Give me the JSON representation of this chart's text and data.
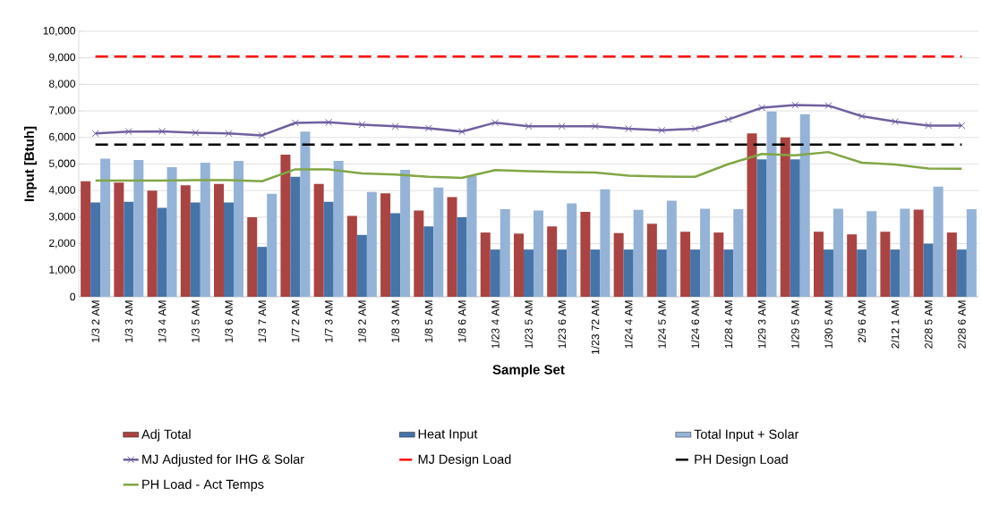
{
  "chart_data": {
    "type": "bar",
    "xlabel": "Sample Set",
    "ylabel": "Input [Btuh]",
    "categories": [
      "1/3 2 AM",
      "1/3 3 AM",
      "1/3 4 AM",
      "1/3 5 AM",
      "1/3 6 AM",
      "1/3 7 AM",
      "1/7 2 AM",
      "1/7 3 AM",
      "1/8 2 AM",
      "1/8 3 AM",
      "1/8 5 AM",
      "1/8 6 AM",
      "1/23 4 AM",
      "1/23 5 AM",
      "1/23 6 AM",
      "1/23 72 AM",
      "1/24 4 AM",
      "1/24 5 AM",
      "1/24 6 AM",
      "1/28 4 AM",
      "1/29 3 AM",
      "1/29 5 AM",
      "1/30 5 AM",
      "2/9 6 AM",
      "2/12 1 AM",
      "2/28 5 AM",
      "2/28 6 AM"
    ],
    "series": [
      {
        "name": "Adj Total",
        "color": "#a94442",
        "values": [
          4350,
          4300,
          4000,
          4200,
          4250,
          3000,
          5350,
          4250,
          3050,
          3900,
          3250,
          3750,
          2420,
          2380,
          2650,
          3200,
          2400,
          2750,
          2450,
          2420,
          6150,
          6000,
          2450,
          2350,
          2450,
          3280,
          2420
        ]
      },
      {
        "name": "Heat Input",
        "color": "#4674a8",
        "values": [
          3550,
          3580,
          3350,
          3550,
          3550,
          1880,
          4520,
          3580,
          2330,
          3150,
          2650,
          3000,
          1780,
          1780,
          1780,
          1780,
          1780,
          1780,
          1780,
          1780,
          5180,
          5180,
          1780,
          1780,
          1780,
          2000,
          1780
        ]
      },
      {
        "name": "Total Input + Solar",
        "color": "#95b3d7",
        "values": [
          5200,
          5150,
          4880,
          5050,
          5120,
          3880,
          6220,
          5120,
          3950,
          4780,
          4120,
          4550,
          3300,
          3250,
          3520,
          4050,
          3270,
          3620,
          3320,
          3300,
          6980,
          6880,
          3320,
          3220,
          3320,
          4150,
          3300
        ]
      },
      {
        "name": "MJ Adjusted for IHG & Solar",
        "type": "line",
        "color": "#7060a0",
        "marker": "cross",
        "line_style": "solid",
        "values": [
          6150,
          6220,
          6230,
          6180,
          6150,
          6080,
          6550,
          6570,
          6480,
          6420,
          6350,
          6220,
          6560,
          6420,
          6420,
          6420,
          6330,
          6270,
          6330,
          6680,
          7120,
          7220,
          7200,
          6800,
          6600,
          6450,
          6450
        ]
      },
      {
        "name": "MJ Design Load",
        "type": "line",
        "color": "#ff0000",
        "line_style": "dashed",
        "values": [
          9050,
          9050,
          9050,
          9050,
          9050,
          9050,
          9050,
          9050,
          9050,
          9050,
          9050,
          9050,
          9050,
          9050,
          9050,
          9050,
          9050,
          9050,
          9050,
          9050,
          9050,
          9050,
          9050,
          9050,
          9050,
          9050,
          9050
        ]
      },
      {
        "name": "PH Design Load",
        "type": "line",
        "color": "#000000",
        "line_style": "dashed",
        "values": [
          5730,
          5730,
          5730,
          5730,
          5730,
          5730,
          5730,
          5730,
          5730,
          5730,
          5730,
          5730,
          5730,
          5730,
          5730,
          5730,
          5730,
          5730,
          5730,
          5730,
          5730,
          5730,
          5730,
          5730,
          5730,
          5730,
          5730
        ]
      },
      {
        "name": "PH Load - Act Temps",
        "type": "line",
        "color": "#82a646",
        "line_style": "solid",
        "values": [
          4380,
          4380,
          4380,
          4390,
          4390,
          4350,
          4800,
          4800,
          4650,
          4600,
          4520,
          4480,
          4770,
          4730,
          4700,
          4680,
          4560,
          4530,
          4520,
          5000,
          5380,
          5330,
          5450,
          5050,
          4980,
          4830,
          4820
        ]
      }
    ],
    "ylim": [
      0,
      10000
    ],
    "yticks": [
      0,
      {
        "value": 1000,
        "label": "1,000"
      },
      {
        "value": 2000,
        "label": "2,000"
      },
      {
        "value": 3000,
        "label": "3,000"
      },
      {
        "value": 4000,
        "label": "4,000"
      },
      {
        "value": 5000,
        "label": "5,000"
      },
      {
        "value": 6000,
        "label": "6,000"
      },
      {
        "value": 7000,
        "label": "7,000"
      },
      {
        "value": 8000,
        "label": "8,000"
      },
      {
        "value": 9000,
        "label": "9,000"
      },
      {
        "value": 10000,
        "label": "10,000"
      }
    ],
    "grid": "y",
    "legend": "bottom"
  }
}
